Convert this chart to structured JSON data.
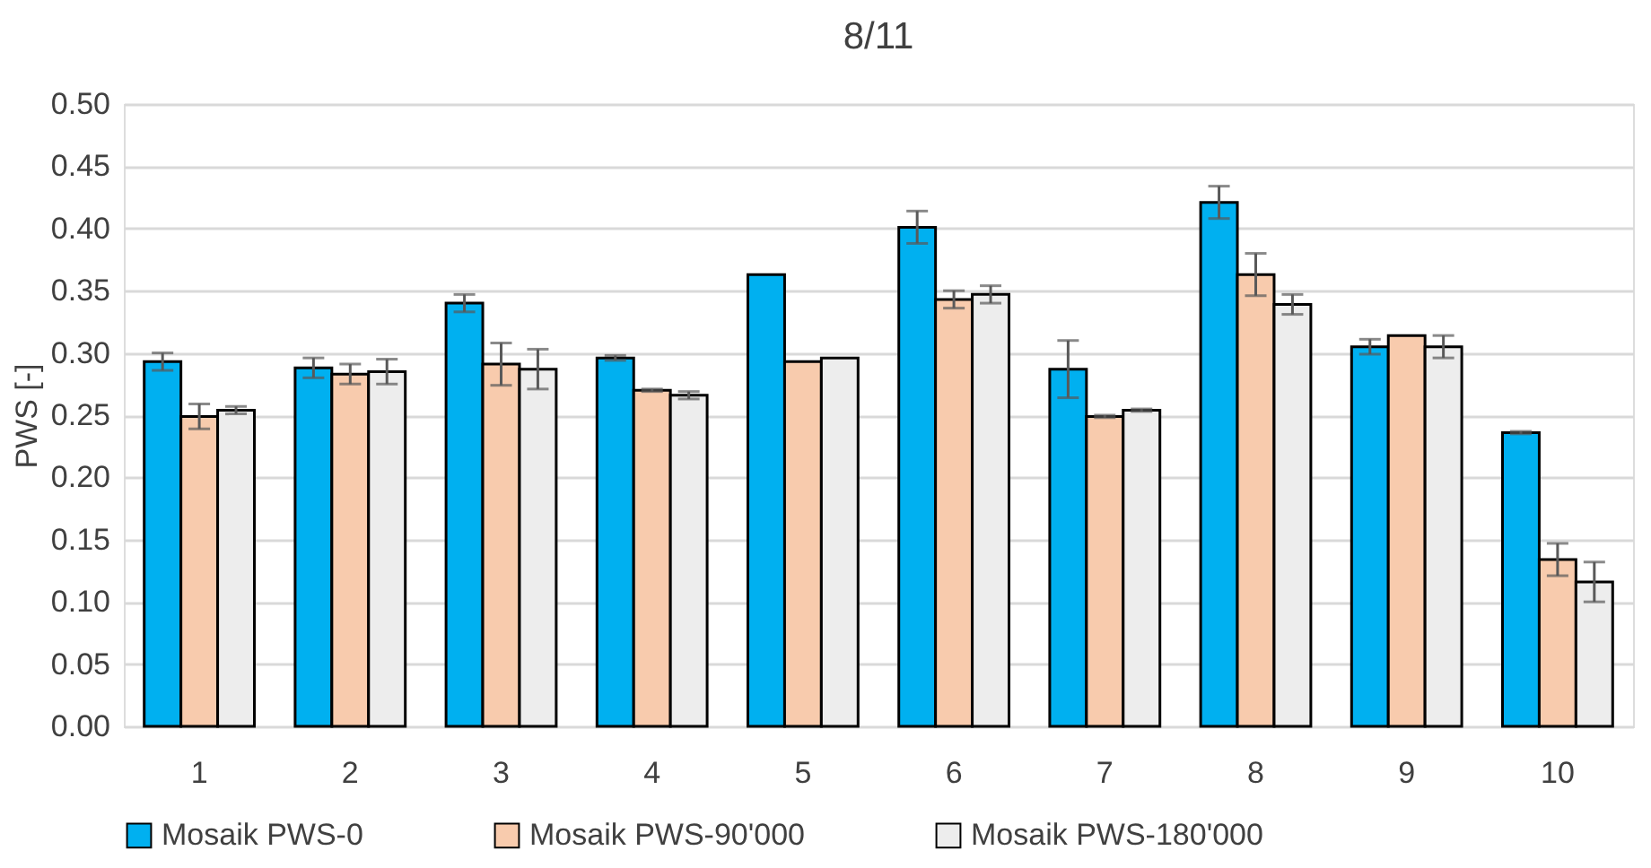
{
  "chart_data": {
    "type": "bar",
    "title": "8/11",
    "ylabel": "PWS [-]",
    "categories": [
      "1",
      "2",
      "3",
      "4",
      "5",
      "6",
      "7",
      "8",
      "9",
      "10"
    ],
    "series": [
      {
        "name": "Mosaik PWS-0",
        "color": "#00b0f0",
        "values": [
          0.293,
          0.288,
          0.34,
          0.296,
          0.363,
          0.401,
          0.287,
          0.421,
          0.305,
          0.236
        ],
        "errors": [
          0.007,
          0.008,
          0.007,
          0.002,
          null,
          0.013,
          0.023,
          0.013,
          0.006,
          0.001
        ]
      },
      {
        "name": "Mosaik PWS-90'000",
        "color": "#f8cbad",
        "values": [
          0.249,
          0.283,
          0.291,
          0.27,
          0.293,
          0.343,
          0.249,
          0.363,
          0.314,
          0.134
        ],
        "errors": [
          0.01,
          0.008,
          0.017,
          0.001,
          null,
          0.007,
          0.001,
          0.017,
          null,
          0.013
        ]
      },
      {
        "name": "Mosaik PWS-180'000",
        "color": "#ededed",
        "values": [
          0.254,
          0.285,
          0.287,
          0.266,
          0.296,
          0.347,
          0.254,
          0.339,
          0.305,
          0.116
        ],
        "errors": [
          0.003,
          0.01,
          0.016,
          0.003,
          null,
          0.007,
          0.001,
          0.008,
          0.009,
          0.016
        ]
      }
    ],
    "ylim": [
      0,
      0.5
    ],
    "yticks": [
      {
        "value": 0,
        "label": "0.00"
      },
      {
        "value": 0.05,
        "label": "0.05"
      },
      {
        "value": 0.1,
        "label": "0.10"
      },
      {
        "value": 0.15,
        "label": "0.15"
      },
      {
        "value": 0.2,
        "label": "0.20"
      },
      {
        "value": 0.25,
        "label": "0.25"
      },
      {
        "value": 0.3,
        "label": "0.30"
      },
      {
        "value": 0.35,
        "label": "0.35"
      },
      {
        "value": 0.4,
        "label": "0.40"
      },
      {
        "value": 0.45,
        "label": "0.45"
      },
      {
        "value": 0.5,
        "label": "0.50"
      }
    ],
    "grid": "y",
    "legend": "bottom"
  }
}
